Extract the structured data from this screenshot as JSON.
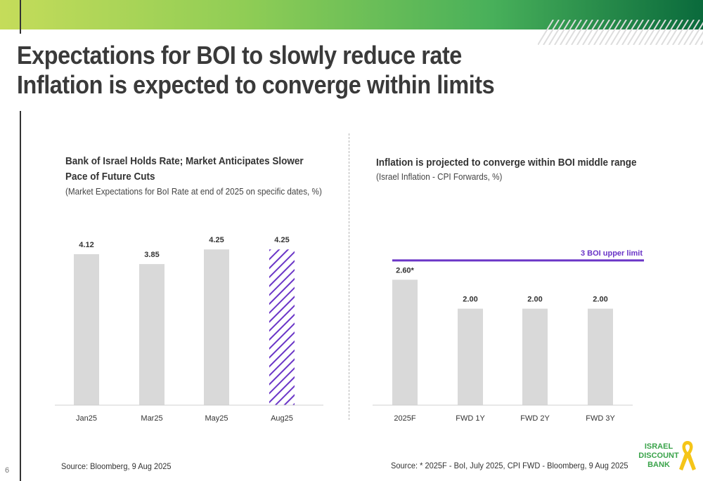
{
  "title_lines": [
    "Expectations for BOI to slowly reduce rate",
    "Inflation is expected to converge within limits"
  ],
  "page_number": "6",
  "colors": {
    "bar": "#d9d9d9",
    "accent": "#6a35c7",
    "brand_green": "#3aa34a",
    "dark_green": "#0a6a3c",
    "ribbon": "#f5c518"
  },
  "chart_data": [
    {
      "type": "bar",
      "title": "Bank of Israel Holds Rate; Market Anticipates Slower Pace of Future Cuts",
      "subtitle": "(Market Expectations for BoI Rate at end of 2025 on specific dates,  %)",
      "categories": [
        "Jan25",
        "Mar25",
        "May25",
        "Aug25"
      ],
      "values": [
        4.12,
        3.85,
        4.25,
        4.25
      ],
      "data_labels": [
        "4.12",
        "3.85",
        "4.25",
        "4.25"
      ],
      "highlight_index": 3,
      "highlight_style": "purple diagonal hatch",
      "ylim": [
        0,
        4.35
      ],
      "grid": false,
      "source": "Source: Bloomberg, 9 Aug 2025"
    },
    {
      "type": "bar",
      "title": "Inflation is projected to converge within BOI middle range",
      "subtitle": "(Israel Inflation - CPI Forwards, %)",
      "categories": [
        "2025F",
        "FWD 1Y",
        "FWD 2Y",
        "FWD 3Y"
      ],
      "values": [
        2.6,
        2.0,
        2.0,
        2.0
      ],
      "data_labels": [
        "2.60*",
        "2.00",
        "2.00",
        "2.00"
      ],
      "reference_line": {
        "value": 3,
        "label": "3 BOI upper limit"
      },
      "ylim": [
        0,
        3.45
      ],
      "grid": false,
      "source": "Source: * 2025F - BoI, July 2025, CPI FWD - Bloomberg, 9 Aug 2025"
    }
  ],
  "logo": {
    "lines": [
      "ISRAEL",
      "DISCOUNT",
      "BANK"
    ],
    "icon": "yellow-ribbon-icon"
  }
}
